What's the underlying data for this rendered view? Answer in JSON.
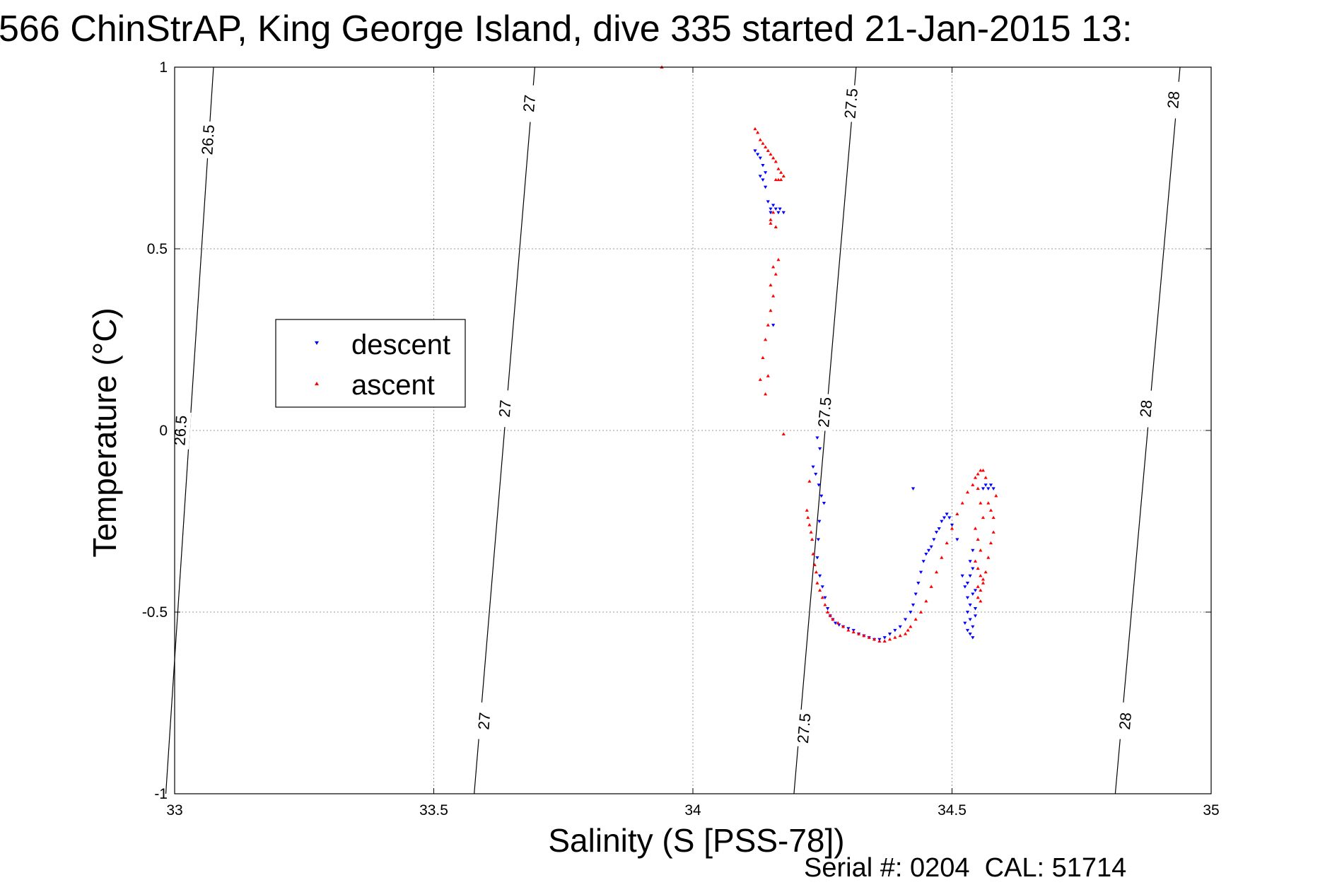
{
  "chart_data": {
    "type": "scatter",
    "title": "566 ChinStrAP, King George Island, dive 335 started 21-Jan-2015 13:",
    "xlabel": "Salinity (S [PSS-78])",
    "ylabel": "Temperature (°C)",
    "xlim": [
      33,
      35
    ],
    "ylim": [
      -1,
      1
    ],
    "xticks": [
      33,
      33.5,
      34,
      34.5,
      35
    ],
    "yticks": [
      -1,
      -0.5,
      0,
      0.5,
      1
    ],
    "xtick_labels": [
      "33",
      "33.5",
      "34",
      "34.5",
      "35"
    ],
    "ytick_labels": [
      "-1",
      "-0.5",
      "0",
      "0.5",
      "1"
    ],
    "grid": true,
    "legend_position": "left-center",
    "footer": "Serial #: 0204  CAL: 51714",
    "isopycnals": [
      {
        "sigma": 26.5,
        "points": [
          [
            32.983,
            -1
          ],
          [
            33.075,
            1
          ]
        ],
        "labels": [
          {
            "text": "26.5",
            "at": [
              33.065,
              0.8
            ]
          },
          {
            "text": "26.5",
            "at": [
              33.012,
              0
            ]
          }
        ]
      },
      {
        "sigma": 27,
        "points": [
          [
            33.578,
            -1
          ],
          [
            33.695,
            1
          ]
        ],
        "labels": [
          {
            "text": "27",
            "at": [
              33.685,
              0.9
            ]
          },
          {
            "text": "27",
            "at": [
              33.638,
              0.06
            ]
          },
          {
            "text": "27",
            "at": [
              33.598,
              -0.8
            ]
          }
        ]
      },
      {
        "sigma": 27.5,
        "points": [
          [
            34.195,
            -1
          ],
          [
            34.315,
            1
          ]
        ],
        "labels": [
          {
            "text": "27.5",
            "at": [
              34.306,
              0.9
            ]
          },
          {
            "text": "27.5",
            "at": [
              34.255,
              0.05
            ]
          },
          {
            "text": "27.5",
            "at": [
              34.215,
              -0.82
            ]
          }
        ]
      },
      {
        "sigma": 28,
        "points": [
          [
            34.815,
            -1
          ],
          [
            34.94,
            1
          ]
        ],
        "labels": [
          {
            "text": "28",
            "at": [
              34.928,
              0.91
            ]
          },
          {
            "text": "28",
            "at": [
              34.875,
              0.06
            ]
          },
          {
            "text": "28",
            "at": [
              34.835,
              -0.8
            ]
          }
        ]
      }
    ],
    "series": [
      {
        "name": "descent",
        "color": "#0000ff",
        "marker": "triangle-down",
        "x": [
          34.12,
          34.125,
          34.13,
          34.135,
          34.14,
          34.13,
          34.135,
          34.14,
          34.145,
          34.15,
          34.15,
          34.155,
          34.16,
          34.165,
          34.168,
          34.175,
          34.155,
          34.24,
          34.245,
          34.232,
          34.237,
          34.243,
          34.248,
          34.253,
          34.244,
          34.242,
          34.24,
          34.245,
          34.25,
          34.255,
          34.26,
          34.265,
          34.27,
          34.275,
          34.282,
          34.29,
          34.3,
          34.31,
          34.32,
          34.33,
          34.34,
          34.35,
          34.36,
          34.37,
          34.38,
          34.39,
          34.4,
          34.41,
          34.42,
          34.425,
          34.43,
          34.435,
          34.44,
          34.445,
          34.45,
          34.455,
          34.46,
          34.465,
          34.47,
          34.475,
          34.48,
          34.485,
          34.49,
          34.495,
          34.5,
          34.51,
          34.52,
          34.525,
          34.53,
          34.535,
          34.54,
          34.53,
          34.535,
          34.54,
          34.545,
          34.525,
          34.53,
          34.535,
          34.54,
          34.545,
          34.53,
          34.535,
          34.54,
          34.545,
          34.535,
          34.54,
          34.425,
          34.56,
          34.565,
          34.57,
          34.575,
          34.58
        ],
        "y": [
          0.77,
          0.76,
          0.75,
          0.73,
          0.71,
          0.7,
          0.69,
          0.67,
          0.63,
          0.61,
          0.6,
          0.62,
          0.61,
          0.6,
          0.61,
          0.6,
          0.29,
          -0.02,
          -0.05,
          -0.1,
          -0.12,
          -0.15,
          -0.18,
          -0.2,
          -0.25,
          -0.3,
          -0.35,
          -0.4,
          -0.43,
          -0.46,
          -0.49,
          -0.51,
          -0.52,
          -0.53,
          -0.535,
          -0.54,
          -0.545,
          -0.55,
          -0.56,
          -0.565,
          -0.57,
          -0.575,
          -0.575,
          -0.57,
          -0.56,
          -0.55,
          -0.54,
          -0.52,
          -0.5,
          -0.48,
          -0.45,
          -0.42,
          -0.39,
          -0.36,
          -0.34,
          -0.33,
          -0.32,
          -0.3,
          -0.28,
          -0.27,
          -0.25,
          -0.24,
          -0.23,
          -0.24,
          -0.26,
          -0.3,
          -0.4,
          -0.43,
          -0.46,
          -0.48,
          -0.45,
          -0.5,
          -0.52,
          -0.54,
          -0.51,
          -0.53,
          -0.55,
          -0.56,
          -0.57,
          -0.49,
          -0.42,
          -0.4,
          -0.38,
          -0.44,
          -0.36,
          -0.33,
          -0.16,
          -0.16,
          -0.15,
          -0.16,
          -0.15,
          -0.16
        ]
      },
      {
        "name": "ascent",
        "color": "#ff0000",
        "marker": "triangle-up",
        "x": [
          33.94,
          34.12,
          34.125,
          34.13,
          34.135,
          34.14,
          34.145,
          34.15,
          34.155,
          34.16,
          34.165,
          34.17,
          34.175,
          34.17,
          34.165,
          34.16,
          34.155,
          34.15,
          34.15,
          34.16,
          34.165,
          34.155,
          34.16,
          34.15,
          34.155,
          34.15,
          34.145,
          34.14,
          34.135,
          34.145,
          34.14,
          34.13,
          34.175,
          34.225,
          34.22,
          34.222,
          34.225,
          34.228,
          34.23,
          34.232,
          34.235,
          34.238,
          34.24,
          34.245,
          34.25,
          34.255,
          34.26,
          34.265,
          34.27,
          34.28,
          34.29,
          34.3,
          34.31,
          34.32,
          34.33,
          34.34,
          34.35,
          34.36,
          34.37,
          34.38,
          34.39,
          34.4,
          34.41,
          34.415,
          34.42,
          34.43,
          34.44,
          34.45,
          34.46,
          34.47,
          34.48,
          34.49,
          34.5,
          34.51,
          34.52,
          34.53,
          34.54,
          34.545,
          34.55,
          34.555,
          34.56,
          34.565,
          34.55,
          34.555,
          34.56,
          34.545,
          34.55,
          34.555,
          34.545,
          34.55,
          34.555,
          34.56,
          34.55,
          34.555,
          34.56,
          34.565,
          34.55,
          34.555,
          34.57,
          34.575,
          34.58,
          34.585,
          34.58,
          34.575,
          34.57
        ],
        "y": [
          1.0,
          0.83,
          0.82,
          0.8,
          0.79,
          0.78,
          0.77,
          0.76,
          0.75,
          0.74,
          0.72,
          0.71,
          0.7,
          0.69,
          0.69,
          0.69,
          0.6,
          0.58,
          0.57,
          0.56,
          0.47,
          0.45,
          0.43,
          0.4,
          0.37,
          0.33,
          0.29,
          0.25,
          0.2,
          0.15,
          0.1,
          0.14,
          -0.01,
          -0.14,
          -0.22,
          -0.24,
          -0.26,
          -0.28,
          -0.3,
          -0.34,
          -0.37,
          -0.39,
          -0.42,
          -0.44,
          -0.46,
          -0.48,
          -0.5,
          -0.51,
          -0.52,
          -0.53,
          -0.54,
          -0.55,
          -0.555,
          -0.56,
          -0.565,
          -0.57,
          -0.575,
          -0.58,
          -0.58,
          -0.575,
          -0.57,
          -0.565,
          -0.56,
          -0.55,
          -0.54,
          -0.52,
          -0.5,
          -0.47,
          -0.43,
          -0.39,
          -0.35,
          -0.31,
          -0.27,
          -0.23,
          -0.2,
          -0.17,
          -0.15,
          -0.13,
          -0.12,
          -0.11,
          -0.11,
          -0.13,
          -0.16,
          -0.2,
          -0.24,
          -0.27,
          -0.3,
          -0.33,
          -0.36,
          -0.38,
          -0.4,
          -0.42,
          -0.43,
          -0.44,
          -0.41,
          -0.39,
          -0.46,
          -0.47,
          -0.2,
          -0.22,
          -0.24,
          -0.18,
          -0.28,
          -0.31,
          -0.35
        ]
      }
    ]
  }
}
